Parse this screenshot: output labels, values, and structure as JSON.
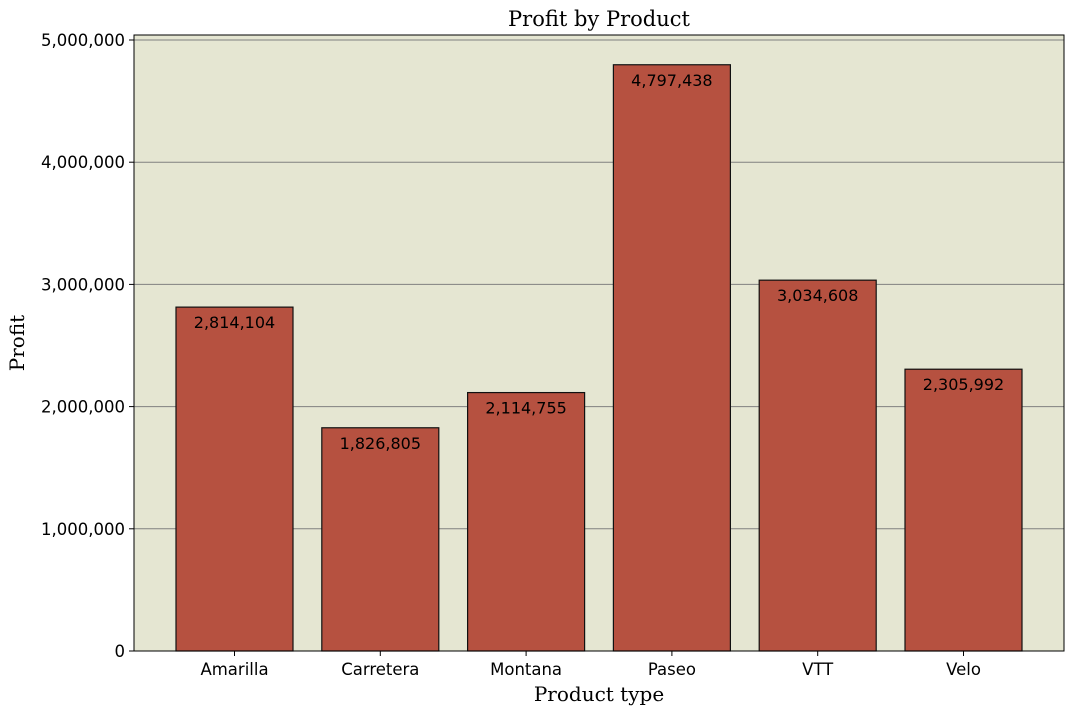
{
  "chart_data": {
    "type": "bar",
    "title": "Profit by Product",
    "xlabel": "Product type",
    "ylabel": "Profit",
    "categories": [
      "Amarilla",
      "Carretera",
      "Montana",
      "Paseo",
      "VTT",
      "Velo"
    ],
    "values": [
      2814104,
      1826805,
      2114755,
      4797438,
      3034608,
      2305992
    ],
    "data_labels": [
      "2,814,104",
      "1,826,805",
      "2,114,755",
      "4,797,438",
      "3,034,608",
      "2,305,992"
    ],
    "ylim": [
      0,
      5000000
    ],
    "yticks": [
      0,
      1000000,
      2000000,
      3000000,
      4000000,
      5000000
    ],
    "ytick_labels": [
      "0",
      "1,000,000",
      "2,000,000",
      "3,000,000",
      "4,000,000",
      "5,000,000"
    ],
    "grid": "horizontal",
    "legend": "none",
    "colors": {
      "bar_fill": "#b65140",
      "bar_edge": "#111111",
      "plot_background": "#e5e6d2",
      "grid": "#808080"
    }
  }
}
